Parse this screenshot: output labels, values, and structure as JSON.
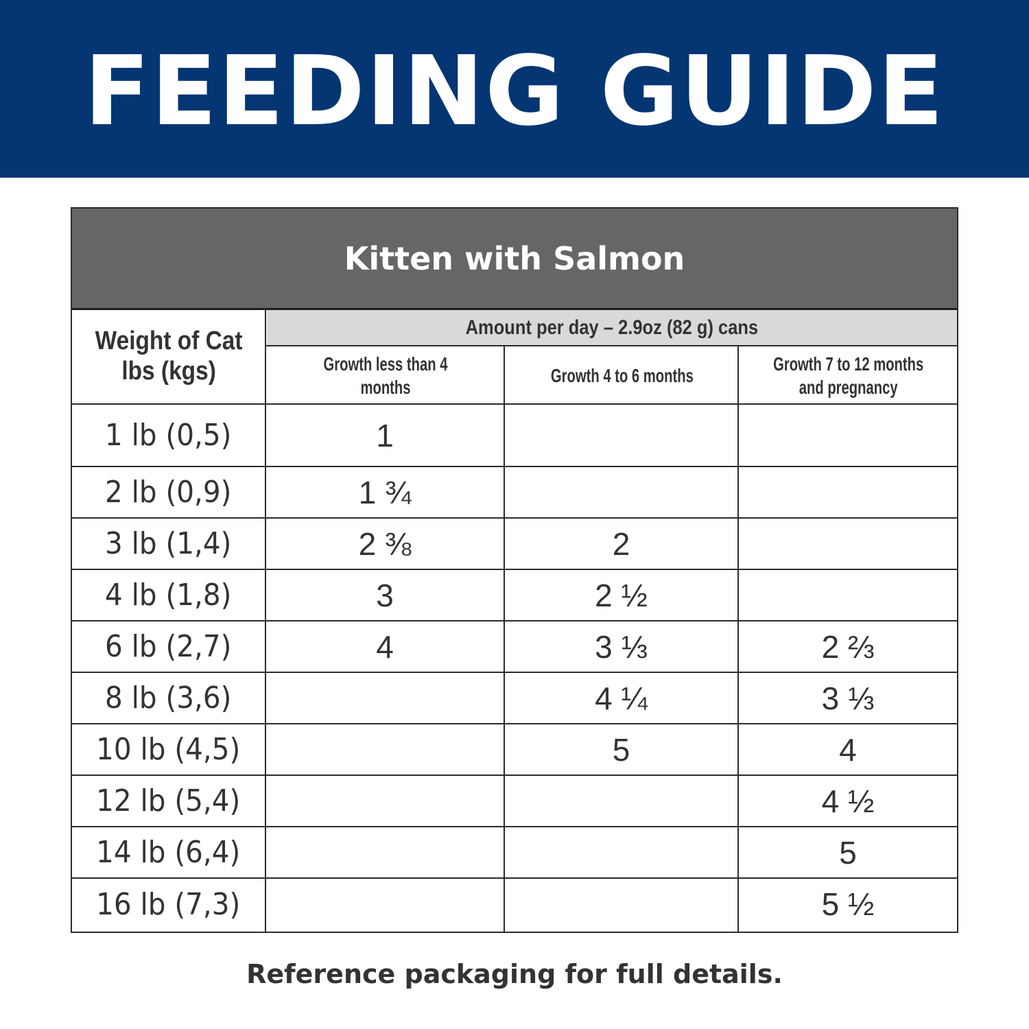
{
  "banner": {
    "title": "FEEDING GUIDE",
    "background": "#033672"
  },
  "table": {
    "title": "Kitten with Salmon",
    "title_background": "#666666",
    "weight_header_line1": "Weight of Cat",
    "weight_header_line2": "lbs (kgs)",
    "amount_header": "Amount per day – 2.9oz (82 g) cans",
    "columns": [
      {
        "label_line1": "Growth less than 4 months",
        "label_line2": ""
      },
      {
        "label_line1": "Growth 4 to 6 months",
        "label_line2": ""
      },
      {
        "label_line1": "Growth 7 to 12 months",
        "label_line2": "and pregnancy"
      }
    ],
    "rows": [
      {
        "weight": "1 lb (0,5)",
        "c0": "1",
        "c1": "",
        "c2": ""
      },
      {
        "weight": "2 lb (0,9)",
        "c0": "1 ¾",
        "c1": "",
        "c2": ""
      },
      {
        "weight": "3 lb (1,4)",
        "c0": "2 ⅜",
        "c1": "2",
        "c2": ""
      },
      {
        "weight": "4 lb (1,8)",
        "c0": "3",
        "c1": "2 ½",
        "c2": ""
      },
      {
        "weight": "6 lb (2,7)",
        "c0": "4",
        "c1": "3 ⅓",
        "c2": "2 ⅔"
      },
      {
        "weight": "8 lb (3,6)",
        "c0": "",
        "c1": "4 ¼",
        "c2": "3 ⅓"
      },
      {
        "weight": "10 lb (4,5)",
        "c0": "",
        "c1": "5",
        "c2": "4"
      },
      {
        "weight": "12 lb (5,4)",
        "c0": "",
        "c1": "",
        "c2": "4 ½"
      },
      {
        "weight": "14 lb (6,4)",
        "c0": "",
        "c1": "",
        "c2": "5"
      },
      {
        "weight": "16 lb (7,3)",
        "c0": "",
        "c1": "",
        "c2": "5 ½"
      }
    ]
  },
  "footer": {
    "note": "Reference packaging for full details."
  }
}
